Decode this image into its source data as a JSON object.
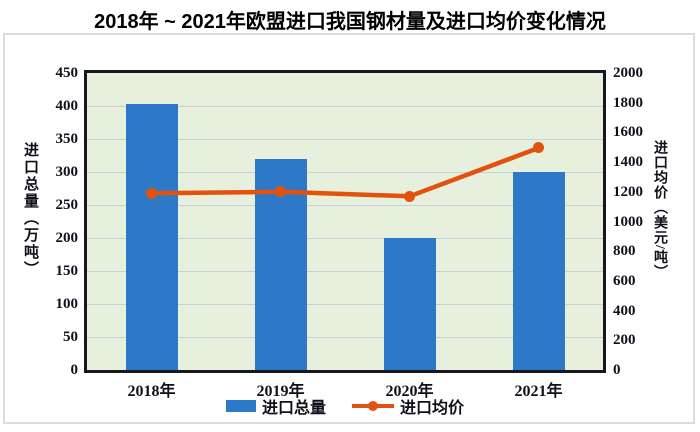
{
  "title": "2018年 ~ 2021年欧盟进口我国钢材量及进口均价变化情况",
  "chart_data": {
    "type": "combo",
    "title": "2018年 ~ 2021年欧盟进口我国钢材量及进口均价变化情况",
    "categories": [
      "2018年",
      "2019年",
      "2020年",
      "2021年"
    ],
    "series": [
      {
        "name": "进口总量",
        "type": "bar",
        "axis": "left",
        "unit": "万吨",
        "values": [
          403,
          320,
          200,
          300
        ],
        "color": "#2e78c8"
      },
      {
        "name": "进口均价",
        "type": "line",
        "axis": "right",
        "unit": "美元/吨",
        "values": [
          1190,
          1200,
          1170,
          1495
        ],
        "color": "#e2520d"
      }
    ],
    "left_axis": {
      "label": "进口总量（万吨）",
      "min": 0,
      "max": 450,
      "step": 50,
      "ticks": [
        0,
        50,
        100,
        150,
        200,
        250,
        300,
        350,
        400,
        450
      ]
    },
    "right_axis": {
      "label": "进口均价（美元/吨）",
      "min": 0,
      "max": 2000,
      "step": 200,
      "ticks": [
        0,
        200,
        400,
        600,
        800,
        1000,
        1200,
        1400,
        1600,
        1800,
        2000
      ]
    },
    "grid": true,
    "legend_position": "bottom",
    "colors": {
      "bar": "#2e78c8",
      "line": "#e2520d",
      "plot_bg": "#e6f0dc",
      "grid": "#c9cfd9",
      "plot_border": "#17171f",
      "outer_border": "#dcdcdc",
      "text": "#10101c"
    }
  }
}
